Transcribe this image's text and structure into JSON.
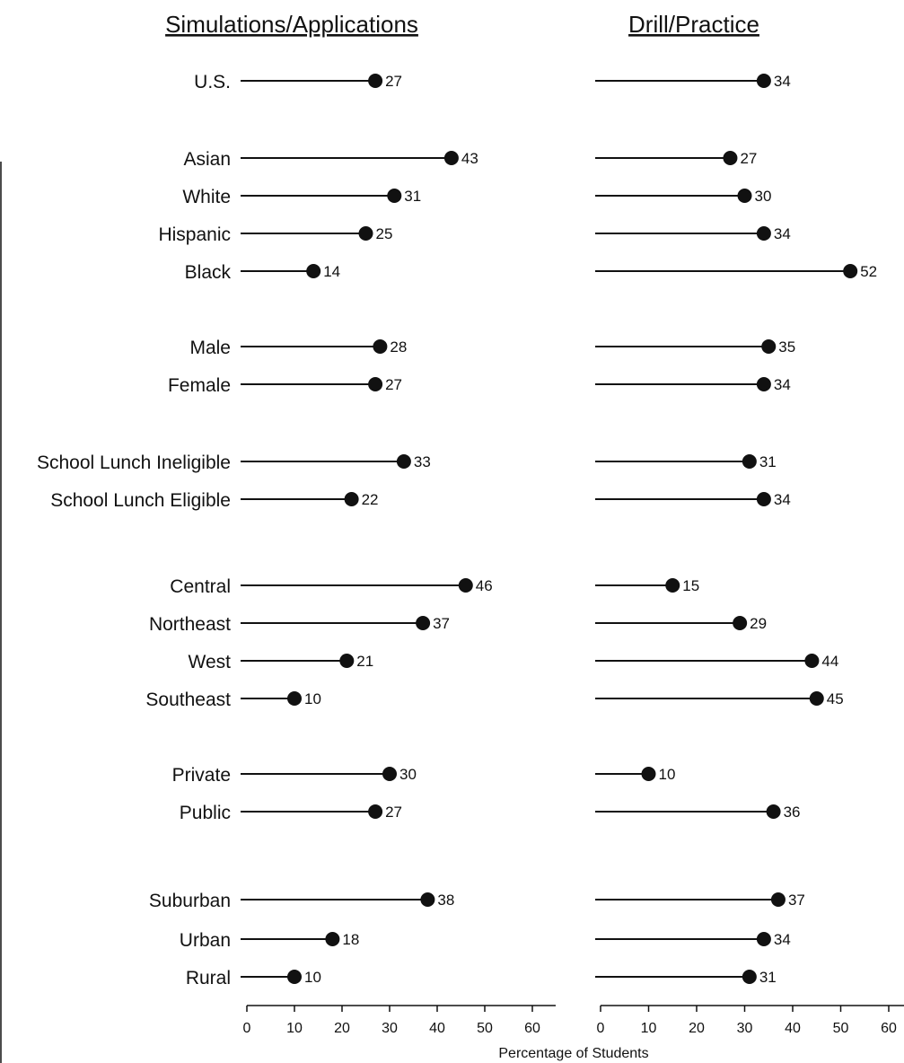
{
  "chart_data": {
    "type": "dot",
    "xlabel": "Percentage of Students",
    "xlim": [
      0,
      60
    ],
    "xticks": [
      0,
      10,
      20,
      30,
      40,
      50,
      60
    ],
    "categories": [
      "U.S.",
      "Asian",
      "White",
      "Hispanic",
      "Black",
      "Male",
      "Female",
      "School Lunch Ineligible",
      "School Lunch Eligible",
      "Central",
      "Northeast",
      "West",
      "Southeast",
      "Private",
      "Public",
      "Suburban",
      "Urban",
      "Rural"
    ],
    "panels": [
      {
        "title": "Simulations/Applications",
        "values": [
          27,
          43,
          31,
          25,
          14,
          28,
          27,
          33,
          22,
          46,
          37,
          21,
          10,
          30,
          27,
          38,
          18,
          10
        ]
      },
      {
        "title": "Drill/Practice",
        "values": [
          34,
          27,
          30,
          34,
          52,
          35,
          34,
          31,
          34,
          15,
          29,
          44,
          45,
          10,
          36,
          37,
          34,
          31
        ]
      }
    ]
  }
}
